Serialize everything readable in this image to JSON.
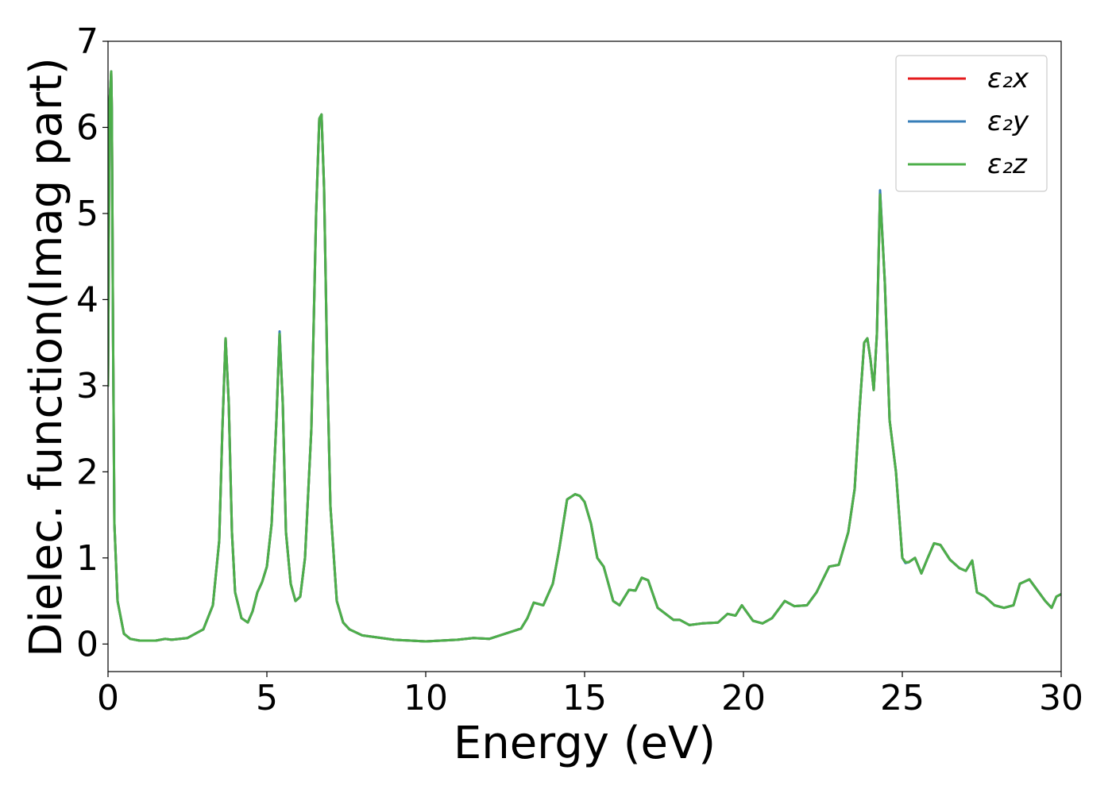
{
  "chart_data": {
    "type": "line",
    "title": "",
    "xlabel": "Energy (eV)",
    "ylabel": "Dielec. function(Imag part)",
    "xlim": [
      0,
      30
    ],
    "ylim": [
      -0.32,
      7
    ],
    "xticks": [
      0,
      5,
      10,
      15,
      20,
      25,
      30
    ],
    "yticks": [
      0,
      1,
      2,
      3,
      4,
      5,
      6,
      7
    ],
    "grid": false,
    "legend_position": "top-right",
    "series": [
      {
        "name": "ε₂x",
        "color": "#e41a1c",
        "x": [
          0.0,
          0.05,
          0.1,
          0.12,
          0.16,
          0.2,
          0.3,
          0.5,
          0.7,
          1.0,
          1.5,
          1.8,
          2.0,
          2.5,
          3.0,
          3.3,
          3.5,
          3.6,
          3.7,
          3.8,
          3.9,
          4.0,
          4.2,
          4.4,
          4.55,
          4.7,
          4.85,
          5.0,
          5.15,
          5.3,
          5.4,
          5.5,
          5.6,
          5.75,
          5.9,
          6.05,
          6.2,
          6.4,
          6.55,
          6.65,
          6.72,
          6.8,
          6.9,
          7.0,
          7.2,
          7.4,
          7.6,
          8.0,
          9.0,
          10.0,
          11.0,
          11.5,
          12.0,
          12.5,
          13.0,
          13.2,
          13.4,
          13.7,
          14.0,
          14.2,
          14.45,
          14.7,
          14.85,
          15.0,
          15.2,
          15.4,
          15.6,
          15.9,
          16.1,
          16.4,
          16.6,
          16.8,
          17.0,
          17.3,
          17.8,
          18.0,
          18.3,
          18.7,
          19.2,
          19.5,
          19.75,
          19.95,
          20.3,
          20.6,
          20.9,
          21.0,
          21.3,
          21.6,
          22.0,
          22.3,
          22.7,
          23.0,
          23.3,
          23.5,
          23.65,
          23.8,
          23.9,
          24.0,
          24.1,
          24.2,
          24.3,
          24.45,
          24.6,
          24.8,
          25.0,
          25.1,
          25.2,
          25.4,
          25.6,
          25.8,
          26.0,
          26.2,
          26.5,
          26.8,
          27.0,
          27.2,
          27.35,
          27.6,
          27.9,
          28.2,
          28.5,
          28.7,
          29.0,
          29.2,
          29.5,
          29.7,
          29.85,
          30.0
        ],
        "y": [
          3.0,
          6.3,
          6.65,
          6.2,
          3.5,
          1.4,
          0.5,
          0.12,
          0.06,
          0.04,
          0.04,
          0.06,
          0.05,
          0.07,
          0.17,
          0.45,
          1.2,
          2.5,
          3.55,
          2.8,
          1.3,
          0.6,
          0.3,
          0.25,
          0.38,
          0.6,
          0.72,
          0.9,
          1.4,
          2.6,
          3.6,
          2.8,
          1.3,
          0.7,
          0.5,
          0.55,
          1.0,
          2.5,
          5.0,
          6.1,
          6.15,
          5.3,
          3.2,
          1.6,
          0.5,
          0.25,
          0.17,
          0.1,
          0.05,
          0.03,
          0.05,
          0.07,
          0.06,
          0.12,
          0.18,
          0.3,
          0.48,
          0.45,
          0.7,
          1.1,
          1.68,
          1.74,
          1.72,
          1.65,
          1.4,
          1.0,
          0.9,
          0.5,
          0.45,
          0.63,
          0.62,
          0.77,
          0.74,
          0.42,
          0.28,
          0.28,
          0.22,
          0.24,
          0.25,
          0.35,
          0.33,
          0.45,
          0.27,
          0.24,
          0.3,
          0.35,
          0.5,
          0.44,
          0.45,
          0.6,
          0.9,
          0.92,
          1.3,
          1.8,
          2.7,
          3.5,
          3.55,
          3.3,
          2.95,
          3.6,
          5.25,
          4.2,
          2.6,
          2.0,
          1.0,
          0.95,
          0.95,
          1.0,
          0.82,
          1.0,
          1.17,
          1.15,
          0.98,
          0.88,
          0.85,
          0.97,
          0.6,
          0.55,
          0.45,
          0.42,
          0.45,
          0.7,
          0.75,
          0.65,
          0.5,
          0.42,
          0.55,
          0.58
        ]
      },
      {
        "name": "ε₂y",
        "color": "#377eb8",
        "x": [
          0.0,
          0.05,
          0.1,
          0.12,
          0.16,
          0.2,
          0.3,
          0.5,
          0.7,
          1.0,
          1.5,
          1.8,
          2.0,
          2.5,
          3.0,
          3.3,
          3.5,
          3.6,
          3.7,
          3.8,
          3.9,
          4.0,
          4.2,
          4.4,
          4.55,
          4.7,
          4.85,
          5.0,
          5.15,
          5.3,
          5.4,
          5.5,
          5.6,
          5.75,
          5.9,
          6.05,
          6.2,
          6.4,
          6.55,
          6.65,
          6.72,
          6.8,
          6.9,
          7.0,
          7.2,
          7.4,
          7.6,
          8.0,
          9.0,
          10.0,
          11.0,
          11.5,
          12.0,
          12.5,
          13.0,
          13.2,
          13.4,
          13.7,
          14.0,
          14.2,
          14.45,
          14.7,
          14.85,
          15.0,
          15.2,
          15.4,
          15.6,
          15.9,
          16.1,
          16.4,
          16.6,
          16.8,
          17.0,
          17.3,
          17.8,
          18.0,
          18.3,
          18.7,
          19.2,
          19.5,
          19.75,
          19.95,
          20.3,
          20.6,
          20.9,
          21.0,
          21.3,
          21.6,
          22.0,
          22.3,
          22.7,
          23.0,
          23.3,
          23.5,
          23.65,
          23.8,
          23.9,
          24.0,
          24.1,
          24.2,
          24.3,
          24.45,
          24.6,
          24.8,
          25.0,
          25.1,
          25.2,
          25.4,
          25.6,
          25.8,
          26.0,
          26.2,
          26.5,
          26.8,
          27.0,
          27.2,
          27.35,
          27.6,
          27.9,
          28.2,
          28.5,
          28.7,
          29.0,
          29.2,
          29.5,
          29.7,
          29.85,
          30.0
        ],
        "y": [
          3.0,
          6.3,
          6.65,
          6.2,
          3.5,
          1.4,
          0.5,
          0.12,
          0.06,
          0.04,
          0.04,
          0.06,
          0.05,
          0.07,
          0.17,
          0.45,
          1.2,
          2.5,
          3.55,
          2.8,
          1.3,
          0.6,
          0.3,
          0.25,
          0.38,
          0.6,
          0.72,
          0.9,
          1.4,
          2.6,
          3.63,
          2.8,
          1.3,
          0.7,
          0.5,
          0.55,
          1.0,
          2.5,
          5.0,
          6.1,
          6.15,
          5.3,
          3.2,
          1.6,
          0.5,
          0.25,
          0.17,
          0.1,
          0.05,
          0.03,
          0.05,
          0.07,
          0.06,
          0.12,
          0.18,
          0.3,
          0.48,
          0.45,
          0.7,
          1.1,
          1.68,
          1.74,
          1.72,
          1.65,
          1.4,
          1.0,
          0.9,
          0.5,
          0.45,
          0.63,
          0.62,
          0.77,
          0.74,
          0.42,
          0.28,
          0.28,
          0.22,
          0.24,
          0.25,
          0.35,
          0.33,
          0.45,
          0.27,
          0.24,
          0.3,
          0.35,
          0.5,
          0.44,
          0.45,
          0.6,
          0.9,
          0.92,
          1.3,
          1.8,
          2.7,
          3.5,
          3.55,
          3.3,
          2.95,
          3.6,
          5.27,
          4.2,
          2.6,
          2.0,
          1.0,
          0.94,
          0.95,
          1.0,
          0.82,
          1.0,
          1.17,
          1.15,
          0.98,
          0.88,
          0.85,
          0.97,
          0.6,
          0.55,
          0.45,
          0.42,
          0.45,
          0.7,
          0.75,
          0.65,
          0.5,
          0.42,
          0.55,
          0.58
        ]
      },
      {
        "name": "ε₂z",
        "color": "#4daf4a",
        "x": [
          0.0,
          0.05,
          0.1,
          0.12,
          0.16,
          0.2,
          0.3,
          0.5,
          0.7,
          1.0,
          1.5,
          1.8,
          2.0,
          2.5,
          3.0,
          3.3,
          3.5,
          3.6,
          3.7,
          3.8,
          3.9,
          4.0,
          4.2,
          4.4,
          4.55,
          4.7,
          4.85,
          5.0,
          5.15,
          5.3,
          5.4,
          5.5,
          5.6,
          5.75,
          5.9,
          6.05,
          6.2,
          6.4,
          6.55,
          6.65,
          6.72,
          6.8,
          6.9,
          7.0,
          7.2,
          7.4,
          7.6,
          8.0,
          9.0,
          10.0,
          11.0,
          11.5,
          12.0,
          12.5,
          13.0,
          13.2,
          13.4,
          13.7,
          14.0,
          14.2,
          14.45,
          14.7,
          14.85,
          15.0,
          15.2,
          15.4,
          15.6,
          15.9,
          16.1,
          16.4,
          16.6,
          16.8,
          17.0,
          17.3,
          17.8,
          18.0,
          18.3,
          18.7,
          19.2,
          19.5,
          19.75,
          19.95,
          20.3,
          20.6,
          20.9,
          21.0,
          21.3,
          21.6,
          22.0,
          22.3,
          22.7,
          23.0,
          23.3,
          23.5,
          23.65,
          23.8,
          23.9,
          24.0,
          24.1,
          24.2,
          24.3,
          24.45,
          24.6,
          24.8,
          25.0,
          25.1,
          25.2,
          25.4,
          25.6,
          25.8,
          26.0,
          26.2,
          26.5,
          26.8,
          27.0,
          27.2,
          27.35,
          27.6,
          27.9,
          28.2,
          28.5,
          28.7,
          29.0,
          29.2,
          29.5,
          29.7,
          29.85,
          30.0
        ],
        "y": [
          3.0,
          6.3,
          6.65,
          6.2,
          3.5,
          1.4,
          0.5,
          0.12,
          0.06,
          0.04,
          0.04,
          0.06,
          0.05,
          0.07,
          0.17,
          0.45,
          1.2,
          2.5,
          3.55,
          2.8,
          1.3,
          0.6,
          0.3,
          0.25,
          0.38,
          0.6,
          0.72,
          0.9,
          1.4,
          2.6,
          3.6,
          2.8,
          1.3,
          0.7,
          0.5,
          0.55,
          1.0,
          2.5,
          5.0,
          6.1,
          6.15,
          5.3,
          3.2,
          1.6,
          0.5,
          0.25,
          0.17,
          0.1,
          0.05,
          0.03,
          0.05,
          0.07,
          0.06,
          0.12,
          0.18,
          0.3,
          0.48,
          0.45,
          0.7,
          1.1,
          1.68,
          1.74,
          1.72,
          1.65,
          1.4,
          1.0,
          0.9,
          0.5,
          0.45,
          0.63,
          0.62,
          0.77,
          0.74,
          0.42,
          0.28,
          0.28,
          0.22,
          0.24,
          0.25,
          0.35,
          0.33,
          0.45,
          0.27,
          0.24,
          0.3,
          0.35,
          0.5,
          0.44,
          0.45,
          0.6,
          0.9,
          0.92,
          1.3,
          1.8,
          2.7,
          3.5,
          3.55,
          3.3,
          2.95,
          3.6,
          5.22,
          4.2,
          2.6,
          2.0,
          1.0,
          0.95,
          0.95,
          1.0,
          0.82,
          1.0,
          1.17,
          1.15,
          0.98,
          0.88,
          0.85,
          0.97,
          0.6,
          0.55,
          0.45,
          0.42,
          0.45,
          0.7,
          0.75,
          0.65,
          0.5,
          0.42,
          0.55,
          0.58
        ]
      }
    ]
  }
}
